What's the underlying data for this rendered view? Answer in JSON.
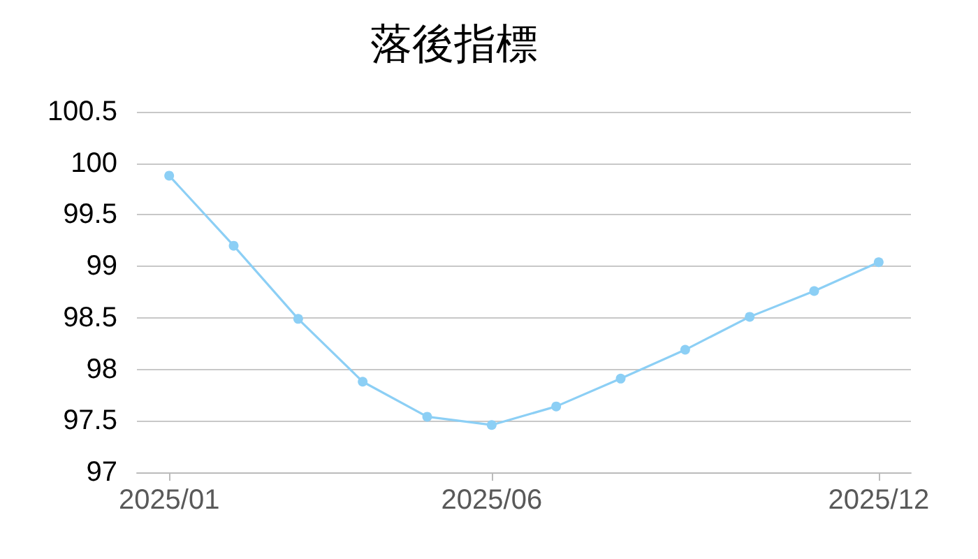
{
  "chart_data": {
    "type": "line",
    "title": "落後指標",
    "categories": [
      "2025/01",
      null,
      null,
      null,
      null,
      "2025/06",
      null,
      null,
      null,
      null,
      null,
      "2025/12"
    ],
    "series": [
      {
        "color": "#8ccff5",
        "values": [
          99.88,
          99.2,
          98.49,
          97.88,
          97.54,
          97.46,
          97.64,
          97.91,
          98.19,
          98.51,
          98.76,
          99.04
        ]
      }
    ],
    "ylim": [
      97,
      100.5
    ],
    "yticks": [
      97,
      97.5,
      98,
      98.5,
      99,
      99.5,
      100,
      100.5
    ],
    "grid": "y",
    "marker": "circle",
    "line_style": "solid"
  }
}
